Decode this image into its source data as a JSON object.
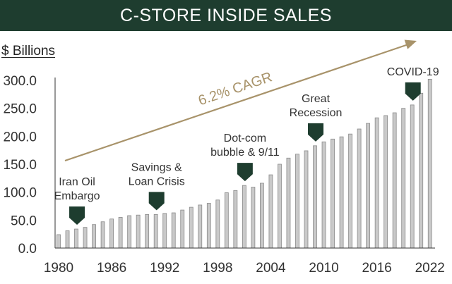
{
  "chart_data": {
    "type": "bar",
    "title": "C-STORE INSIDE SALES",
    "ylabel": "$ Billions",
    "xlabel": "",
    "ylim": [
      0,
      300
    ],
    "yticks": [
      "0.0",
      "50.0",
      "100.0",
      "150.0",
      "200.0",
      "250.0",
      "300.0"
    ],
    "x_tick_labels": [
      "1980",
      "1986",
      "1992",
      "1998",
      "2004",
      "2010",
      "2016",
      "2022"
    ],
    "categories": [
      1980,
      1981,
      1982,
      1983,
      1984,
      1985,
      1986,
      1987,
      1988,
      1989,
      1990,
      1991,
      1992,
      1993,
      1994,
      1995,
      1996,
      1997,
      1998,
      1999,
      2000,
      2001,
      2002,
      2003,
      2004,
      2005,
      2006,
      2007,
      2008,
      2009,
      2010,
      2011,
      2012,
      2013,
      2014,
      2015,
      2016,
      2017,
      2018,
      2019,
      2020,
      2021,
      2022
    ],
    "values": [
      24,
      31,
      34,
      37,
      42,
      47,
      52,
      55,
      58,
      59,
      60,
      60,
      62,
      63,
      68,
      73,
      77,
      80,
      86,
      99,
      103,
      112,
      109,
      116,
      131,
      150,
      161,
      168,
      174,
      183,
      190,
      195,
      199,
      204,
      213,
      223,
      233,
      237,
      242,
      250,
      256,
      277,
      302
    ],
    "trend_label": "6.2% CAGR",
    "annotations": [
      {
        "lines": [
          "Iran Oil",
          "Embargo"
        ],
        "year": 1982
      },
      {
        "lines": [
          "Savings &",
          "Loan Crisis"
        ],
        "year": 1991
      },
      {
        "lines": [
          "Dot-com",
          "bubble & 9/11"
        ],
        "year": 2001
      },
      {
        "lines": [
          "Great",
          "Recession"
        ],
        "year": 2009
      },
      {
        "lines": [
          "COVID-19"
        ],
        "year": 2020
      }
    ],
    "colors": {
      "bar_fill": "#c9c9c9",
      "bar_stroke": "#8a8a8a",
      "arrow": "#a8936a",
      "marker": "#1e3d2f",
      "title_bg": "#1e3d2f"
    }
  }
}
